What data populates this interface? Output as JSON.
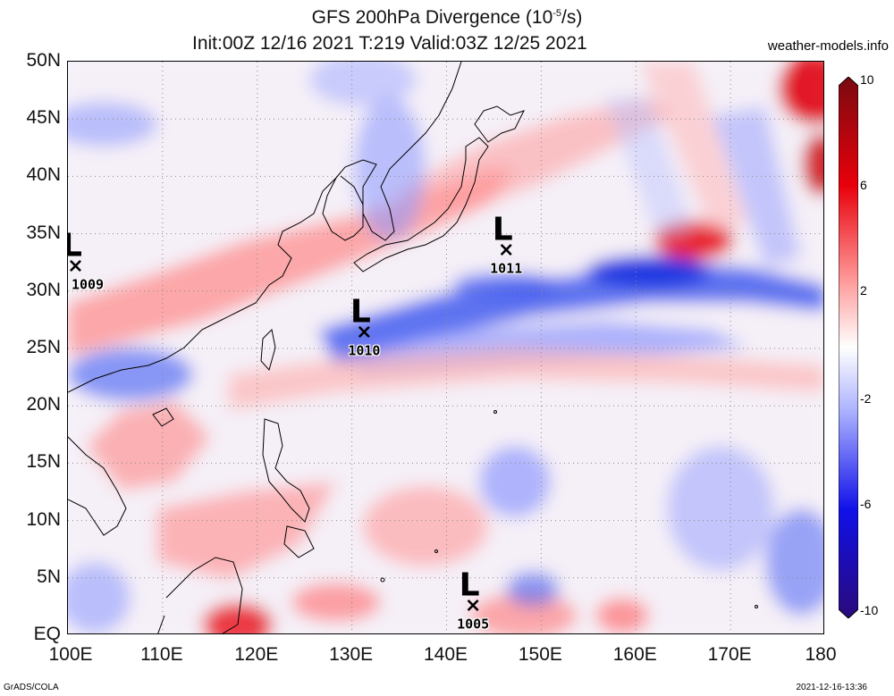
{
  "header": {
    "title_prefix": "GFS 200hPa Divergence (10",
    "title_exp": "-5",
    "title_suffix": "/s)",
    "subtitle": "Init:00Z 12/16 2021 T:219 Valid:03Z 12/25 2021",
    "site": "weather-models.info"
  },
  "map": {
    "lon_range": [
      100,
      180
    ],
    "lat_range": [
      0,
      50
    ],
    "lat_labels": [
      "50N",
      "45N",
      "40N",
      "35N",
      "30N",
      "25N",
      "20N",
      "15N",
      "10N",
      "5N",
      "EQ"
    ],
    "lon_labels": [
      "100E",
      "110E",
      "120E",
      "130E",
      "140E",
      "150E",
      "160E",
      "170E",
      "180"
    ],
    "grid": "dotted"
  },
  "lows": [
    {
      "label": "L",
      "pressure": "1009",
      "lon": 100.8,
      "lat": 32.3
    },
    {
      "label": "L",
      "pressure": "1011",
      "lon": 146.3,
      "lat": 33.7
    },
    {
      "label": "L",
      "pressure": "1010",
      "lon": 131.3,
      "lat": 26.5
    },
    {
      "label": "L",
      "pressure": "1005",
      "lon": 142.8,
      "lat": 2.7
    }
  ],
  "colorbar": {
    "ticks": [
      "10",
      "6",
      "2",
      "-2",
      "-6",
      "-10"
    ],
    "colors": [
      "#7a0a10",
      "#e8000b",
      "#ff9d9d",
      "#ffffff",
      "#aab0ff",
      "#1010e8",
      "#2a0a7a"
    ]
  },
  "footer": {
    "left": "GrADS/COLA",
    "right": "2021-12-16-13:36"
  },
  "field_colors": {
    "pos_strong": "#e60000",
    "pos_weak": "#ffb0b0",
    "neg_weak": "#b8c0ff",
    "neg_strong": "#1530e0",
    "coast": "#000000"
  }
}
